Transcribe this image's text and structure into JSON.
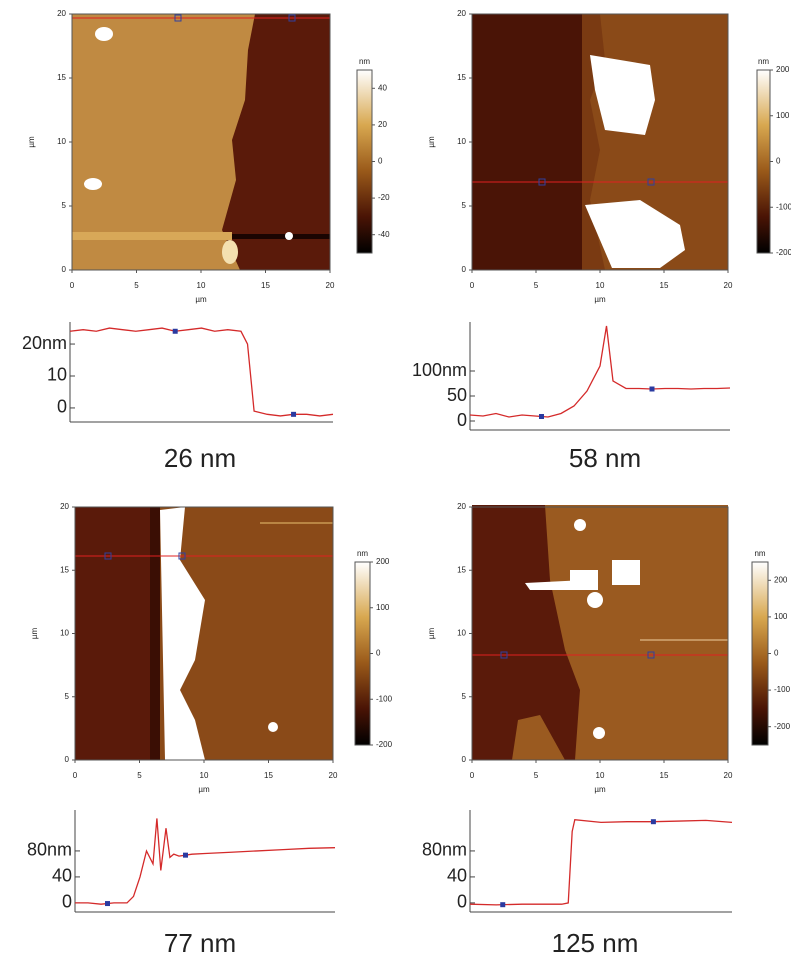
{
  "chart_data": [
    {
      "type": "line",
      "caption": "26 nm",
      "color": "#d42a2a",
      "x": [
        0,
        1,
        2,
        3,
        4,
        5,
        6,
        7,
        8,
        9,
        10,
        11,
        12,
        13,
        13.5,
        14,
        15,
        16,
        17,
        18,
        19,
        20
      ],
      "values": [
        24,
        24.5,
        24,
        25,
        24.5,
        24,
        24.5,
        25,
        24,
        24.5,
        25,
        24,
        24.5,
        24,
        20,
        -1,
        -2,
        -2.5,
        -2,
        -2,
        -2.5,
        -2
      ],
      "cursors": [
        8,
        17
      ],
      "xlim": [
        0,
        20
      ],
      "ylim": [
        -4.4,
        26.9
      ],
      "yticks": [
        {
          "value": 20,
          "label": "20nm"
        },
        10,
        0
      ],
      "image": {
        "xlabel": "µm",
        "ylabel": "µm",
        "xlim": [
          0,
          20
        ],
        "ylim": [
          0,
          20
        ],
        "xticks": [
          0,
          5,
          10,
          15,
          20
        ],
        "yticks": [
          0,
          5,
          10,
          15,
          20
        ],
        "colorbar": {
          "label": "nm",
          "lim": [
            -50,
            50
          ],
          "ticks": [
            40,
            20,
            0,
            -20,
            -40
          ]
        }
      }
    },
    {
      "type": "line",
      "caption": "58 nm",
      "color": "#d42a2a",
      "x": [
        0,
        1,
        2,
        3,
        4,
        5,
        6,
        7,
        8,
        9,
        10,
        10.5,
        11,
        12,
        13,
        14,
        15,
        16,
        17,
        18,
        19,
        20
      ],
      "values": [
        12,
        10,
        15,
        8,
        12,
        10,
        8,
        15,
        30,
        60,
        110,
        190,
        80,
        65,
        65,
        64,
        65,
        65,
        64,
        65,
        65,
        66
      ],
      "cursors": [
        5.5,
        14
      ],
      "xlim": [
        0,
        20
      ],
      "ylim": [
        -18,
        198
      ],
      "yticks": [
        {
          "value": 100,
          "label": "100nm"
        },
        50,
        0
      ],
      "image": {
        "xlabel": "µm",
        "ylabel": "µm",
        "xlim": [
          0,
          20
        ],
        "ylim": [
          0,
          20
        ],
        "xticks": [
          0,
          5,
          10,
          15,
          20
        ],
        "yticks": [
          0,
          5,
          10,
          15,
          20
        ],
        "colorbar": {
          "label": "nm",
          "lim": [
            -200,
            200
          ],
          "ticks": [
            200,
            100,
            0,
            -100,
            -200
          ]
        }
      }
    },
    {
      "type": "line",
      "caption": "77 nm",
      "color": "#d42a2a",
      "x": [
        0,
        1,
        2,
        3,
        4,
        4.5,
        5,
        5.5,
        6,
        6.3,
        6.6,
        7,
        7.3,
        7.6,
        8,
        9,
        10,
        12,
        14,
        16,
        18,
        20
      ],
      "values": [
        0,
        0,
        -2,
        0,
        0,
        10,
        40,
        80,
        60,
        130,
        50,
        115,
        70,
        75,
        72,
        75,
        76,
        78,
        80,
        82,
        84,
        85
      ],
      "cursors": [
        2.5,
        8.5
      ],
      "xlim": [
        0,
        20
      ],
      "ylim": [
        -14,
        143
      ],
      "yticks": [
        {
          "value": 80,
          "label": "80nm"
        },
        40,
        0
      ],
      "image": {
        "xlabel": "µm",
        "ylabel": "µm",
        "xlim": [
          0,
          20
        ],
        "ylim": [
          0,
          20
        ],
        "xticks": [
          0,
          5,
          10,
          15,
          20
        ],
        "yticks": [
          0,
          5,
          10,
          15,
          20
        ],
        "colorbar": {
          "label": "nm",
          "lim": [
            -200,
            200
          ],
          "ticks": [
            200,
            100,
            0,
            -100,
            -200
          ]
        }
      }
    },
    {
      "type": "line",
      "caption": "125 nm",
      "color": "#d42a2a",
      "x": [
        0,
        2,
        4,
        6,
        7,
        7.5,
        7.8,
        8,
        10,
        12,
        14,
        16,
        18,
        20
      ],
      "values": [
        -2,
        -3,
        -2,
        -2,
        -2,
        0,
        110,
        128,
        124,
        125,
        125,
        126,
        127,
        124
      ],
      "cursors": [
        2.5,
        14
      ],
      "xlim": [
        0,
        20
      ],
      "ylim": [
        -14,
        143
      ],
      "yticks": [
        {
          "value": 80,
          "label": "80nm"
        },
        40,
        0
      ],
      "image": {
        "xlabel": "µm",
        "ylabel": "µm",
        "xlim": [
          0,
          20
        ],
        "ylim": [
          0,
          20
        ],
        "xticks": [
          0,
          5,
          10,
          15,
          20
        ],
        "yticks": [
          0,
          5,
          10,
          15,
          20
        ],
        "colorbar": {
          "label": "nm",
          "lim": [
            -250,
            250
          ],
          "ticks": [
            200,
            100,
            0,
            -100,
            -200
          ]
        }
      }
    }
  ]
}
